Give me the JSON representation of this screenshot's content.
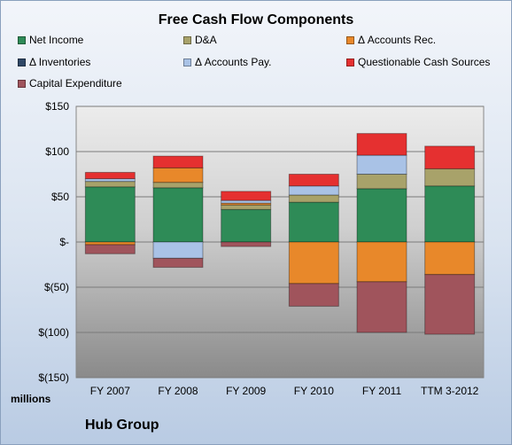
{
  "chart_data": {
    "type": "bar",
    "title": "Free Cash Flow Components",
    "categories": [
      "FY 2007",
      "FY 2008",
      "FY 2009",
      "FY 2010",
      "FY 2011",
      "TTM 3-2012"
    ],
    "ylim": [
      -150,
      150
    ],
    "yticks": [
      150,
      100,
      50,
      0,
      -50,
      -100,
      -150
    ],
    "ytick_labels": [
      "$150",
      "$100",
      "$50",
      "$-",
      "$(50)",
      "$(100)",
      "$(150)"
    ],
    "unit_label": "millions",
    "grid": true,
    "legend_position": "top",
    "series": [
      {
        "name": "Net Income",
        "color": "#2e8b57",
        "values": [
          61,
          60,
          36,
          44,
          59,
          62
        ]
      },
      {
        "name": "D&A",
        "color": "#a8a26a",
        "values": [
          6,
          6,
          5,
          8,
          16,
          19
        ]
      },
      {
        "name": "Δ Accounts Rec.",
        "color": "#e8882a",
        "values": [
          -3,
          16,
          2,
          -46,
          -44,
          -36
        ]
      },
      {
        "name": "Δ Inventories",
        "color": "#2f4766",
        "values": [
          0,
          0,
          0,
          0,
          0,
          0
        ]
      },
      {
        "name": "Δ Accounts Pay.",
        "color": "#a9c2e6",
        "values": [
          3,
          -18,
          3,
          10,
          21,
          0
        ]
      },
      {
        "name": "Questionable Cash Sources",
        "color": "#e53030",
        "values": [
          7,
          13,
          10,
          13,
          24,
          25
        ]
      },
      {
        "name": "Capital Expenditure",
        "color": "#a0545c",
        "values": [
          -10,
          -10,
          -5,
          -25,
          -56,
          -66
        ]
      }
    ]
  },
  "footer": {
    "company": "Hub Group"
  }
}
